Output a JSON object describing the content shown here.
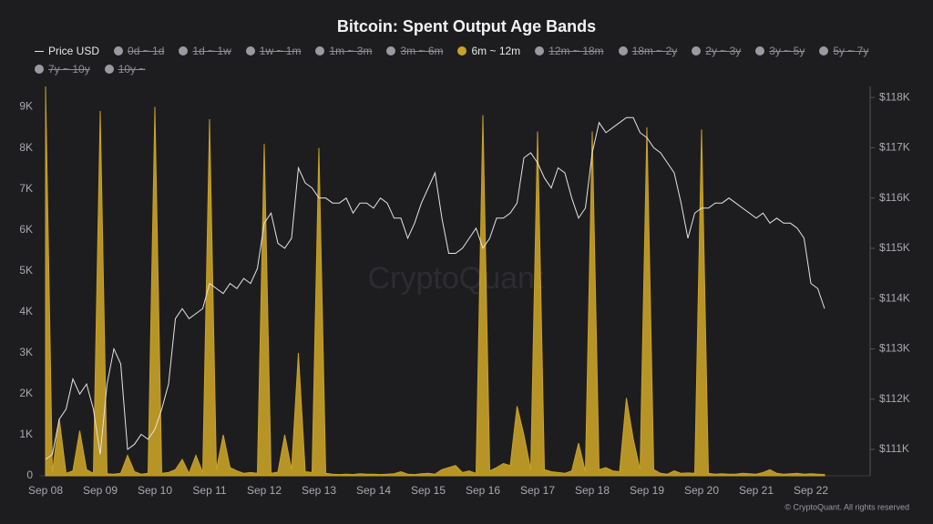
{
  "chart_data": {
    "type": "area",
    "title": "Bitcoin: Spent Output Age Bands",
    "watermark": "CryptoQuant",
    "footer": "© CryptoQuant. All rights reserved",
    "categories": [
      "Sep 08",
      null,
      null,
      null,
      null,
      null,
      null,
      null,
      "Sep 09",
      null,
      null,
      null,
      null,
      null,
      null,
      null,
      "Sep 10",
      null,
      null,
      null,
      null,
      null,
      null,
      null,
      "Sep 11",
      null,
      null,
      null,
      null,
      null,
      null,
      null,
      "Sep 12",
      null,
      null,
      null,
      null,
      null,
      null,
      null,
      "Sep 13",
      null,
      null,
      null,
      null,
      null,
      null,
      null,
      "Sep 14",
      null,
      null,
      null,
      null,
      null,
      null,
      null,
      "Sep 15",
      null,
      null,
      null,
      null,
      null,
      null,
      null,
      "Sep 16",
      null,
      null,
      null,
      null,
      null,
      null,
      null,
      "Sep 17",
      null,
      null,
      null,
      null,
      null,
      null,
      null,
      "Sep 18",
      null,
      null,
      null,
      null,
      null,
      null,
      null,
      "Sep 19",
      null,
      null,
      null,
      null,
      null,
      null,
      null,
      "Sep 20",
      null,
      null,
      null,
      null,
      null,
      null,
      null,
      "Sep 21",
      null,
      null,
      null,
      null,
      null,
      null,
      null,
      "Sep 22",
      null,
      null
    ],
    "series": [
      {
        "name": "Price USD",
        "type": "line",
        "axis": "y2",
        "color": "#e4e4e6",
        "visible": true,
        "values": [
          110800,
          110900,
          111600,
          111800,
          112400,
          112100,
          112300,
          111800,
          110900,
          112300,
          113000,
          112700,
          111000,
          111100,
          111300,
          111200,
          111400,
          111800,
          112300,
          113600,
          113800,
          113600,
          113700,
          113800,
          114300,
          114200,
          114100,
          114300,
          114200,
          114400,
          114300,
          114600,
          115500,
          115700,
          115100,
          115000,
          115200,
          116600,
          116300,
          116200,
          116000,
          116000,
          115900,
          115900,
          116000,
          115700,
          115900,
          115900,
          115800,
          116000,
          115900,
          115600,
          115600,
          115200,
          115500,
          115900,
          116200,
          116500,
          115600,
          114900,
          114900,
          115000,
          115200,
          115400,
          115000,
          115200,
          115600,
          115600,
          115700,
          115900,
          116800,
          116900,
          116700,
          116400,
          116200,
          116600,
          116500,
          116000,
          115600,
          115800,
          116900,
          117500,
          117300,
          117400,
          117500,
          117600,
          117600,
          117300,
          117200,
          117000,
          116900,
          116700,
          116500,
          115900,
          115200,
          115700,
          115800,
          115800,
          115900,
          115900,
          116000,
          115900,
          115800,
          115700,
          115600,
          115700,
          115500,
          115600,
          115500,
          115500,
          115400,
          115200,
          114300,
          114200,
          113800
        ]
      },
      {
        "name": "0d ~ 1d",
        "color": "#9a9aa0",
        "visible": false
      },
      {
        "name": "1d ~ 1w",
        "color": "#9a9aa0",
        "visible": false
      },
      {
        "name": "1w ~ 1m",
        "color": "#9a9aa0",
        "visible": false
      },
      {
        "name": "1m ~ 3m",
        "color": "#9a9aa0",
        "visible": false
      },
      {
        "name": "3m ~ 6m",
        "color": "#9a9aa0",
        "visible": false
      },
      {
        "name": "6m ~ 12m",
        "type": "area",
        "color": "#c9a227",
        "visible": true,
        "values": [
          9500,
          80,
          1400,
          60,
          120,
          1100,
          150,
          60,
          8900,
          50,
          40,
          60,
          500,
          100,
          40,
          60,
          9000,
          60,
          80,
          150,
          400,
          60,
          500,
          80,
          8700,
          150,
          1000,
          200,
          120,
          60,
          80,
          60,
          8100,
          60,
          90,
          1000,
          150,
          3000,
          100,
          80,
          8000,
          60,
          40,
          30,
          40,
          30,
          50,
          40,
          40,
          30,
          40,
          50,
          100,
          40,
          30,
          50,
          60,
          40,
          150,
          200,
          250,
          80,
          120,
          60,
          8800,
          120,
          200,
          300,
          250,
          1700,
          1000,
          150,
          8400,
          150,
          100,
          80,
          60,
          120,
          800,
          100,
          8400,
          150,
          200,
          120,
          100,
          1900,
          900,
          150,
          8500,
          150,
          60,
          40,
          120,
          60,
          70,
          60,
          8450,
          60,
          40,
          50,
          40,
          40,
          60,
          50,
          40,
          80,
          150,
          60,
          40,
          50,
          60,
          40,
          50,
          40,
          30
        ]
      },
      {
        "name": "12m ~ 18m",
        "color": "#9a9aa0",
        "visible": false
      },
      {
        "name": "18m ~ 2y",
        "color": "#9a9aa0",
        "visible": false
      },
      {
        "name": "2y ~ 3y",
        "color": "#9a9aa0",
        "visible": false
      },
      {
        "name": "3y ~ 5y",
        "color": "#9a9aa0",
        "visible": false
      },
      {
        "name": "5y ~ 7y",
        "color": "#9a9aa0",
        "visible": false
      },
      {
        "name": "7y ~ 10y",
        "color": "#9a9aa0",
        "visible": false
      },
      {
        "name": "10y ~",
        "color": "#9a9aa0",
        "visible": false
      }
    ],
    "ylim": [
      0,
      9500
    ],
    "yticks": [
      0,
      {
        "value": 1000,
        "label": "1K"
      },
      {
        "value": 2000,
        "label": "2K"
      },
      {
        "value": 3000,
        "label": "3K"
      },
      {
        "value": 4000,
        "label": "4K"
      },
      {
        "value": 5000,
        "label": "5K"
      },
      {
        "value": 6000,
        "label": "6K"
      },
      {
        "value": 7000,
        "label": "7K"
      },
      {
        "value": 8000,
        "label": "8K"
      },
      {
        "value": 9000,
        "label": "9K"
      }
    ],
    "y2lim": [
      110475,
      118220
    ],
    "y2ticks": [
      {
        "value": 111000,
        "label": "$111K"
      },
      {
        "value": 112000,
        "label": "$112K"
      },
      {
        "value": 113000,
        "label": "$113K"
      },
      {
        "value": 114000,
        "label": "$114K"
      },
      {
        "value": 115000,
        "label": "$115K"
      },
      {
        "value": 116000,
        "label": "$116K"
      },
      {
        "value": 117000,
        "label": "$117K"
      },
      {
        "value": 118000,
        "label": "$118K"
      }
    ],
    "grid": false
  }
}
